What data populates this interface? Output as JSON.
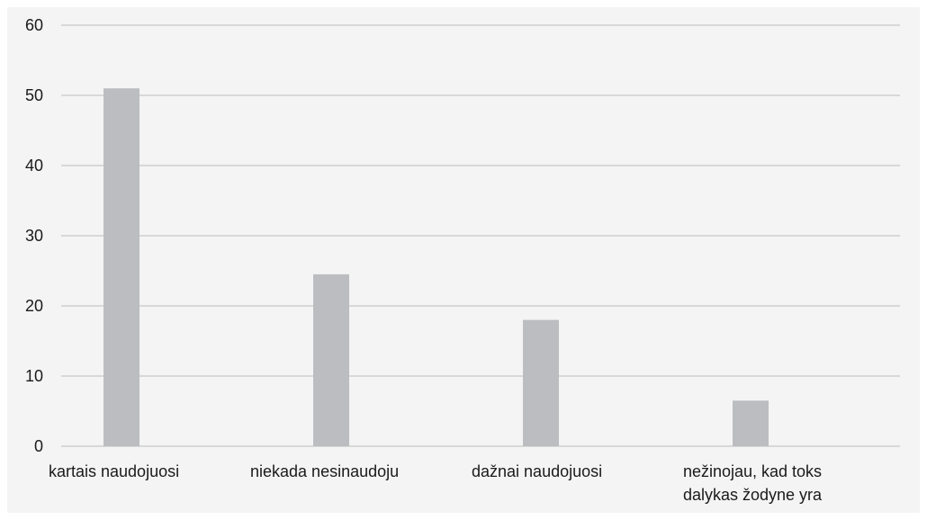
{
  "chart_data": {
    "type": "bar",
    "categories": [
      [
        "kartais naudojuosi"
      ],
      [
        "niekada nesinaudoju"
      ],
      [
        "dažnai naudojuosi"
      ],
      [
        "nežinojau, kad toks",
        "dalykas žodyne yra"
      ]
    ],
    "values": [
      51,
      24.5,
      18,
      6.5
    ],
    "ylim": [
      0,
      60
    ],
    "yticks": [
      0,
      10,
      20,
      30,
      40,
      50,
      60
    ],
    "ytick_labels": [
      "0",
      "10",
      "20",
      "30",
      "40",
      "50",
      "60"
    ],
    "grid": true,
    "legend": "none",
    "title": "",
    "xlabel": "",
    "ylabel": "",
    "colors": {
      "bar": "#bcbdc0",
      "grid": "#c8c8c8",
      "background": "#f4f4f4",
      "text": "#1a1a1a"
    }
  }
}
